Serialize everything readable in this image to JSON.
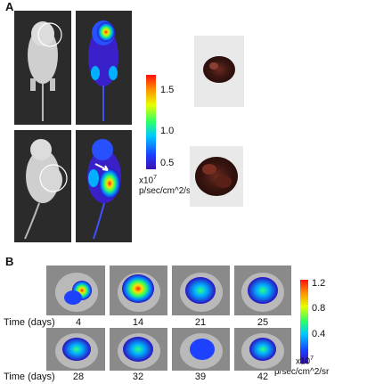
{
  "panel_a": {
    "label": "A",
    "colorbar": {
      "ticks": [
        "1.5",
        "1.0",
        "0.5"
      ],
      "multiplier": "x10",
      "exponent": "7",
      "unit": "p/sec/cm^2/sr"
    }
  },
  "panel_b": {
    "label": "B",
    "time_label": "Time (days)",
    "row1_days": [
      "4",
      "14",
      "21",
      "25"
    ],
    "row2_days": [
      "28",
      "32",
      "39",
      "42"
    ],
    "colorbar": {
      "ticks": [
        "1.2",
        "0.8",
        "0.4"
      ],
      "multiplier": "x10",
      "exponent": "7",
      "unit": "p/sec/cm^2/sr"
    }
  },
  "colors": {
    "background": "#ffffff",
    "photo_background": "#2b2b2b",
    "mouse": "#d8d8d8",
    "circle_marker": "#ffffff"
  }
}
